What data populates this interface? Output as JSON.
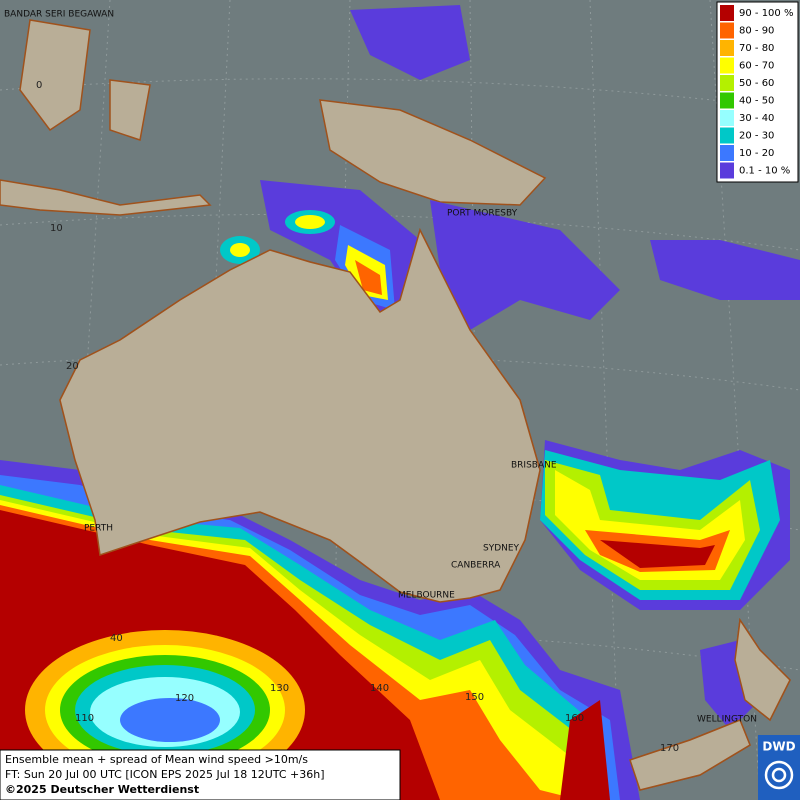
{
  "legend": {
    "items": [
      {
        "label": "90 - 100 %",
        "color": "#b40000"
      },
      {
        "label": "80 - 90",
        "color": "#ff6400"
      },
      {
        "label": "70 - 80",
        "color": "#ffb400"
      },
      {
        "label": "60 - 70",
        "color": "#ffff00"
      },
      {
        "label": "50 - 60",
        "color": "#b4f000"
      },
      {
        "label": "40 - 50",
        "color": "#32c800"
      },
      {
        "label": "30 - 40",
        "color": "#96ffff"
      },
      {
        "label": "20 - 30",
        "color": "#00c8c8"
      },
      {
        "label": "10 - 20",
        "color": "#3c78ff"
      },
      {
        "label": "0.1 - 10 %",
        "color": "#5a3cdc"
      }
    ]
  },
  "cities": [
    "BANDAR SERI BEGAWAN",
    "PORT MORESBY",
    "BRISBANE",
    "PERTH",
    "SYDNEY",
    "CANBERRA",
    "MELBOURNE",
    "WELLINGTON"
  ],
  "grid_labels": {
    "latitude": [
      "0",
      "10",
      "20",
      "40"
    ],
    "longitude": [
      "110",
      "120",
      "130",
      "140",
      "150",
      "160",
      "170"
    ]
  },
  "caption": {
    "lines": [
      "Ensemble mean + spread of Mean wind speed >10m/s",
      "FT: Sun 20 Jul 00 UTC [ICON EPS 2025 Jul 18 12UTC +36h]",
      "©2025 Deutscher Wetterdienst"
    ]
  },
  "logo": "DWD"
}
